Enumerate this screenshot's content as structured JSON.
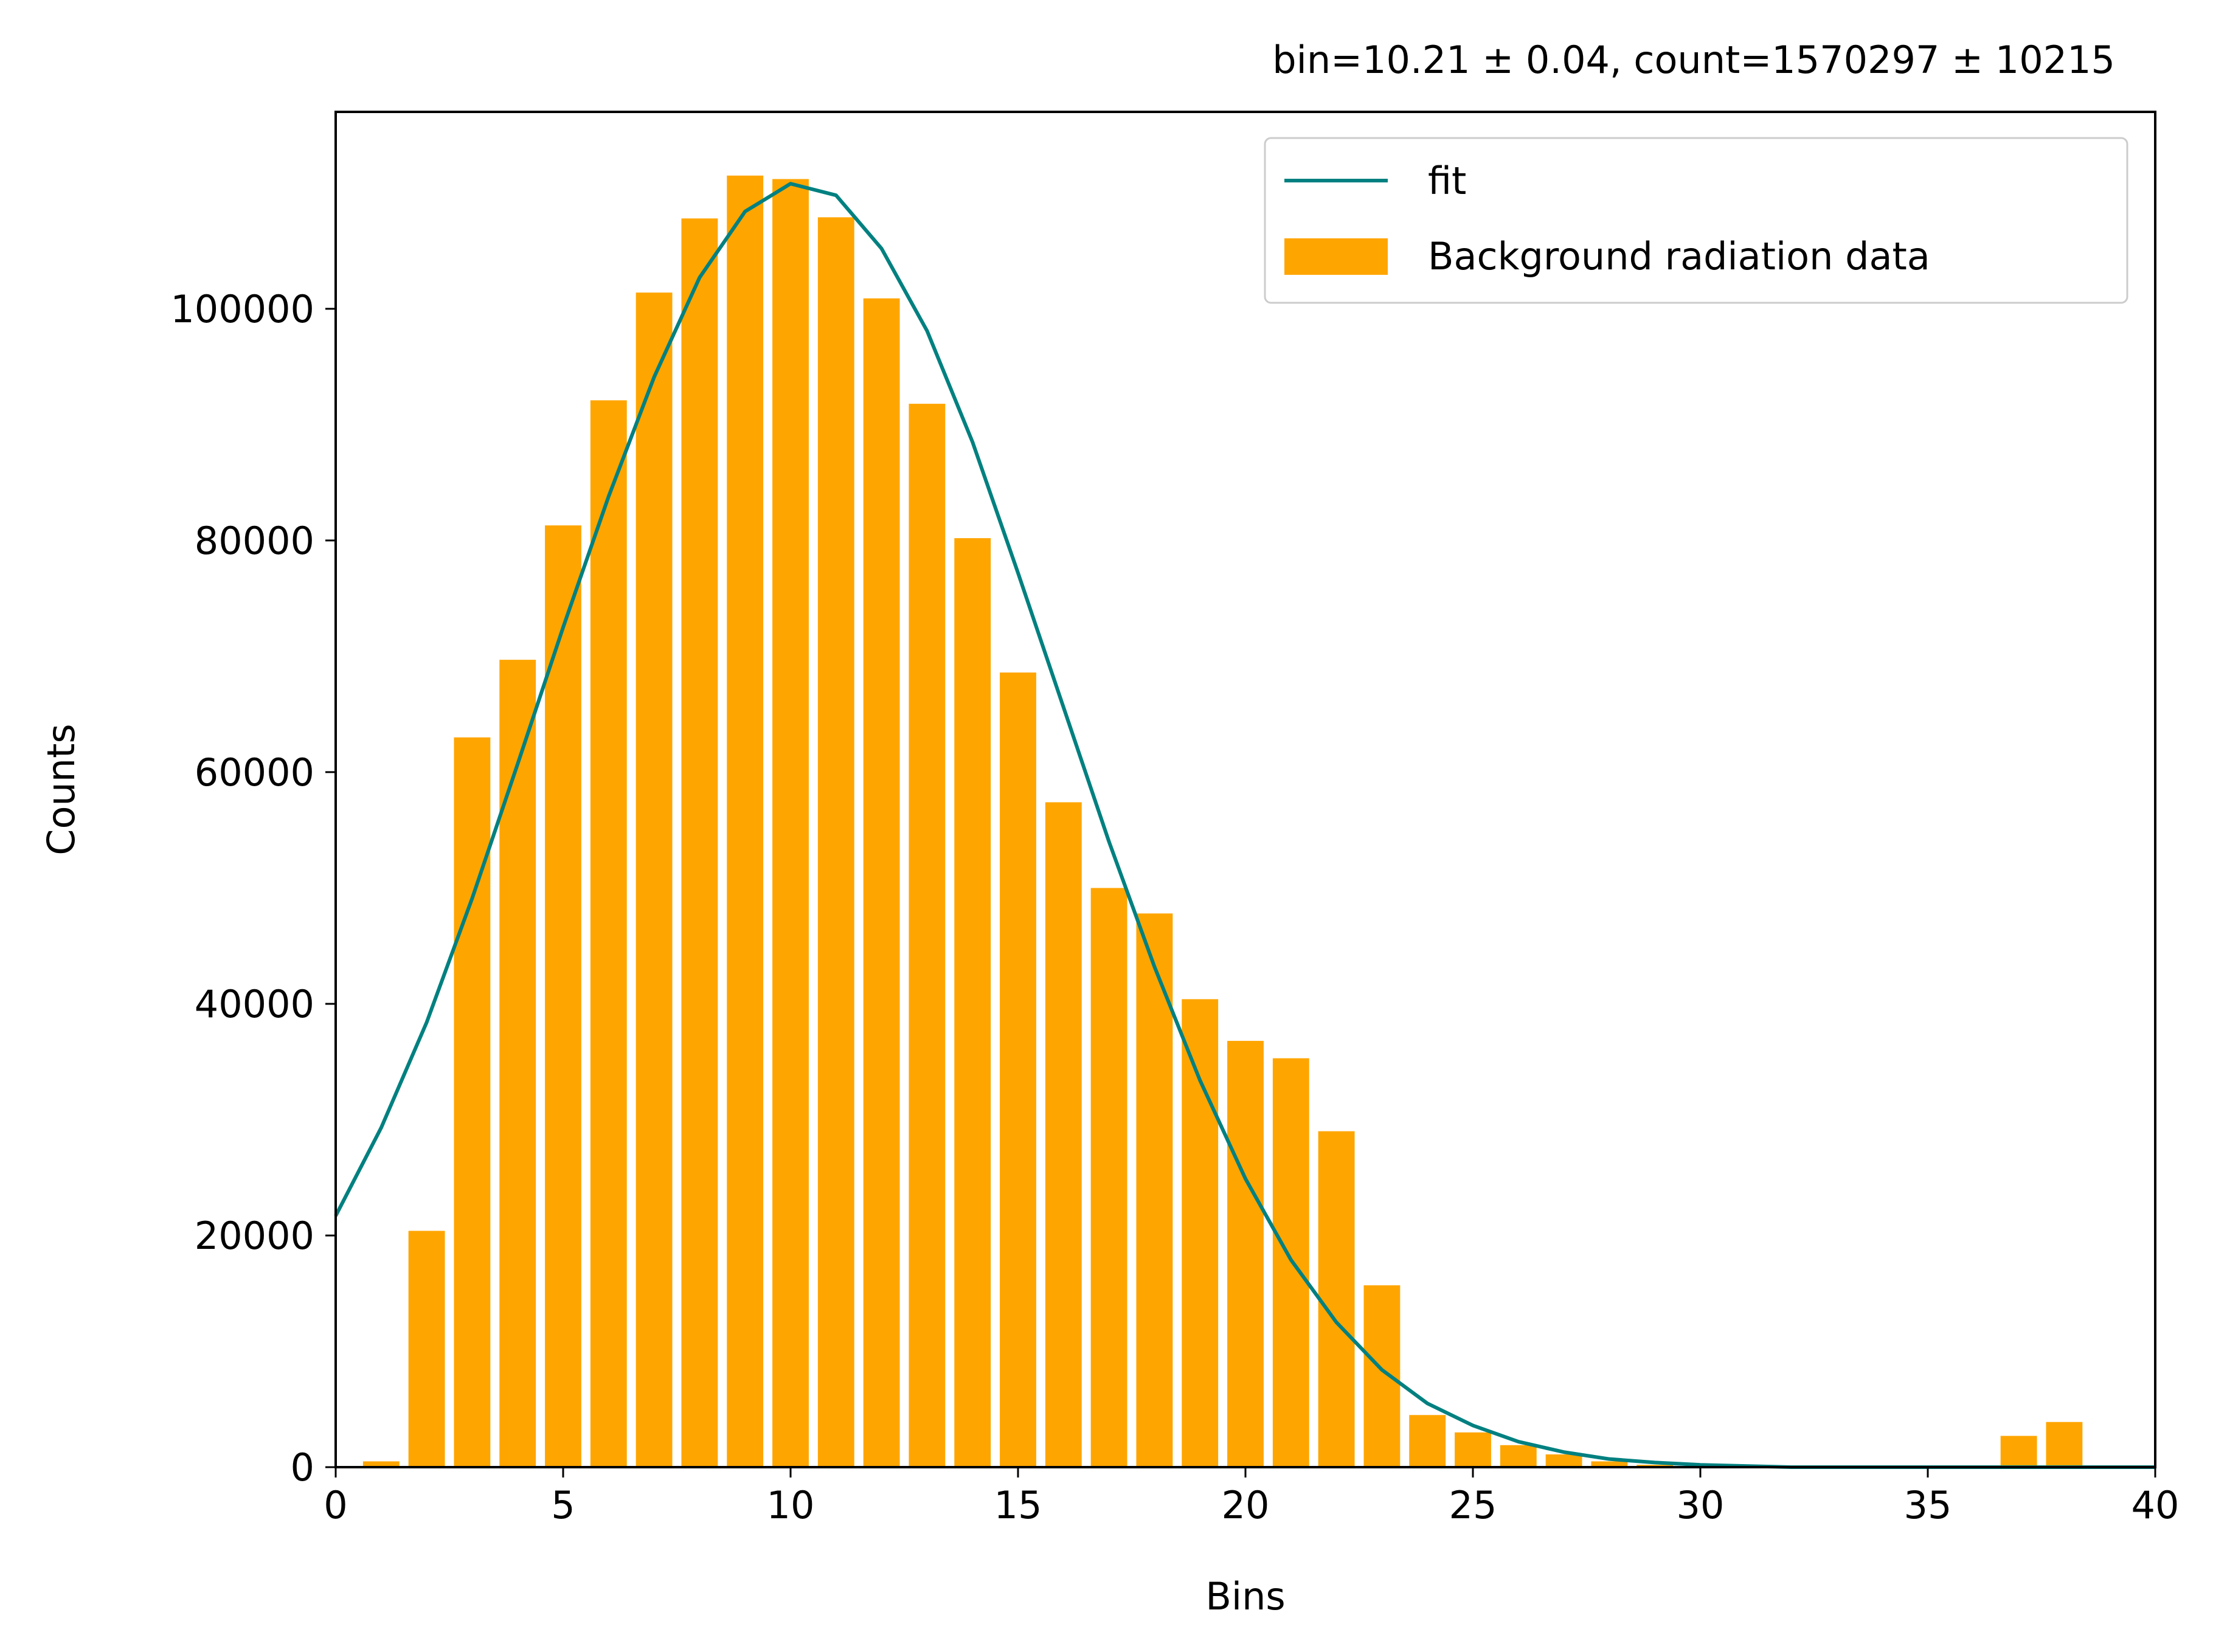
{
  "chart_data": {
    "type": "bar",
    "title": "bin=10.21 ± 0.04, count=1570297 ± 10215",
    "xlabel": "Bins",
    "ylabel": "Counts",
    "xlim": [
      0,
      40
    ],
    "ylim": [
      0,
      117000
    ],
    "xticks": [
      0,
      5,
      10,
      15,
      20,
      25,
      30,
      35,
      40
    ],
    "yticks": [
      0,
      20000,
      40000,
      60000,
      80000,
      100000
    ],
    "grid": false,
    "legend_position": "top-right",
    "bar_width": 0.8,
    "bars": {
      "name": "Background radiation data",
      "color": "#FFA500",
      "x": [
        1,
        2,
        3,
        4,
        5,
        6,
        7,
        8,
        9,
        10,
        11,
        12,
        13,
        14,
        15,
        16,
        17,
        18,
        19,
        20,
        21,
        22,
        23,
        24,
        25,
        26,
        27,
        28,
        29,
        30,
        31,
        32,
        33,
        34,
        35,
        36,
        37,
        38,
        39
      ],
      "values": [
        500,
        20400,
        63000,
        69700,
        81300,
        92100,
        101400,
        107800,
        111500,
        111200,
        107900,
        100900,
        91800,
        80200,
        68600,
        57400,
        50000,
        47800,
        40400,
        36800,
        35300,
        29000,
        15700,
        4500,
        3000,
        1900,
        1100,
        500,
        200,
        0,
        0,
        0,
        0,
        0,
        0,
        0,
        2700,
        3900,
        100
      ]
    },
    "line": {
      "name": "fit",
      "color": "#008080",
      "x": [
        0,
        1,
        2,
        3,
        4,
        5,
        6,
        7,
        8,
        9,
        10,
        11,
        12,
        13,
        14,
        15,
        16,
        17,
        18,
        19,
        20,
        21,
        22,
        23,
        24,
        25,
        26,
        27,
        28,
        29,
        30,
        31,
        32,
        33,
        34,
        35,
        36,
        37,
        38,
        39,
        40
      ],
      "values": [
        21700,
        29300,
        38400,
        49100,
        60700,
        72500,
        83800,
        94100,
        102700,
        108400,
        110800,
        109800,
        105200,
        98100,
        88500,
        77200,
        65600,
        54000,
        43200,
        33400,
        24900,
        17900,
        12500,
        8400,
        5500,
        3600,
        2200,
        1300,
        700,
        400,
        200,
        100,
        0,
        0,
        0,
        0,
        0,
        0,
        0,
        0,
        0
      ]
    }
  }
}
